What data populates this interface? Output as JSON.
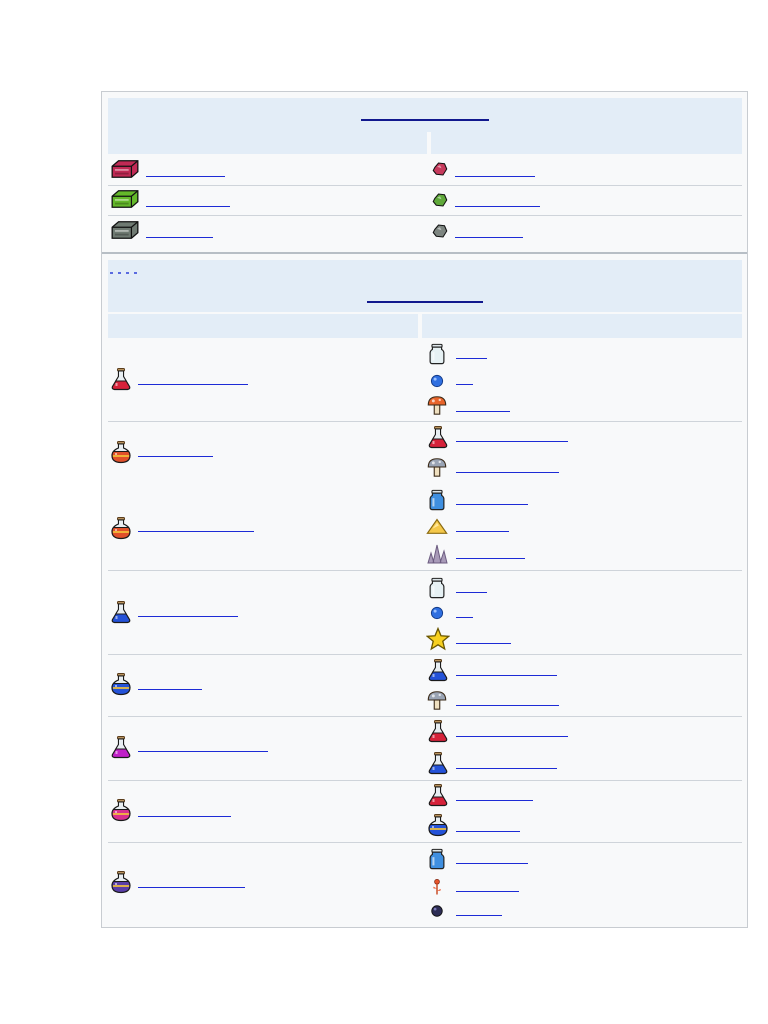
{
  "colors": {
    "frame_bg": "#f8f9fa",
    "header_bg": "#e3edf7",
    "link": "#1d2bd6",
    "row_border": "#cfd4da"
  },
  "top_table": {
    "title": "",
    "rows": [
      {
        "left_icon": "crimson-crate-icon",
        "left_label": "",
        "right_icon": "crimson-ore-icon",
        "right_label": ""
      },
      {
        "left_icon": "green-crate-icon",
        "left_label": "",
        "right_icon": "green-ore-icon",
        "right_label": ""
      },
      {
        "left_icon": "gray-crate-icon",
        "left_label": "",
        "right_icon": "gray-ore-icon",
        "right_label": ""
      }
    ]
  },
  "recipe_table": {
    "title": "",
    "recipes": [
      {
        "result_icon": "red-potion-icon",
        "result": "",
        "ingredients": [
          {
            "icon": "bottle-icon",
            "label": ""
          },
          {
            "icon": "blue-gel-icon",
            "label": ""
          },
          {
            "icon": "orange-mushroom-icon",
            "label": ""
          }
        ]
      },
      {
        "result_icon": "orange-potion-icon",
        "result": "",
        "ingredients": [
          {
            "icon": "red-potion-icon",
            "label": ""
          },
          {
            "icon": "gray-mushroom-icon",
            "label": ""
          }
        ]
      },
      {
        "result_icon": "orange-striped-potion-icon",
        "result": "",
        "ingredients": [
          {
            "icon": "water-bottle-icon",
            "label": ""
          },
          {
            "icon": "yellow-pile-icon",
            "label": ""
          },
          {
            "icon": "purple-crystal-icon",
            "label": ""
          }
        ]
      },
      {
        "result_icon": "blue-potion-icon",
        "result": "",
        "ingredients": [
          {
            "icon": "bottle-icon",
            "label": ""
          },
          {
            "icon": "blue-gel-icon",
            "label": ""
          },
          {
            "icon": "star-icon",
            "label": ""
          }
        ]
      },
      {
        "result_icon": "blue-striped-potion-icon",
        "result": "",
        "ingredients": [
          {
            "icon": "blue-potion-icon",
            "label": ""
          },
          {
            "icon": "gray-mushroom-icon",
            "label": ""
          }
        ]
      },
      {
        "result_icon": "magenta-potion-icon",
        "result": "",
        "ingredients": [
          {
            "icon": "red-potion-icon",
            "label": ""
          },
          {
            "icon": "blue-potion-icon",
            "label": ""
          }
        ]
      },
      {
        "result_icon": "pink-potion-icon",
        "result": "",
        "ingredients": [
          {
            "icon": "red-potion-icon",
            "label": ""
          },
          {
            "icon": "blue-potion-icon",
            "label": ""
          }
        ]
      },
      {
        "result_icon": "purple-potion-icon",
        "result": "",
        "ingredients": [
          {
            "icon": "water-bottle-icon",
            "label": ""
          },
          {
            "icon": "orange-flower-icon",
            "label": ""
          },
          {
            "icon": "dark-orb-icon",
            "label": ""
          }
        ]
      }
    ]
  }
}
